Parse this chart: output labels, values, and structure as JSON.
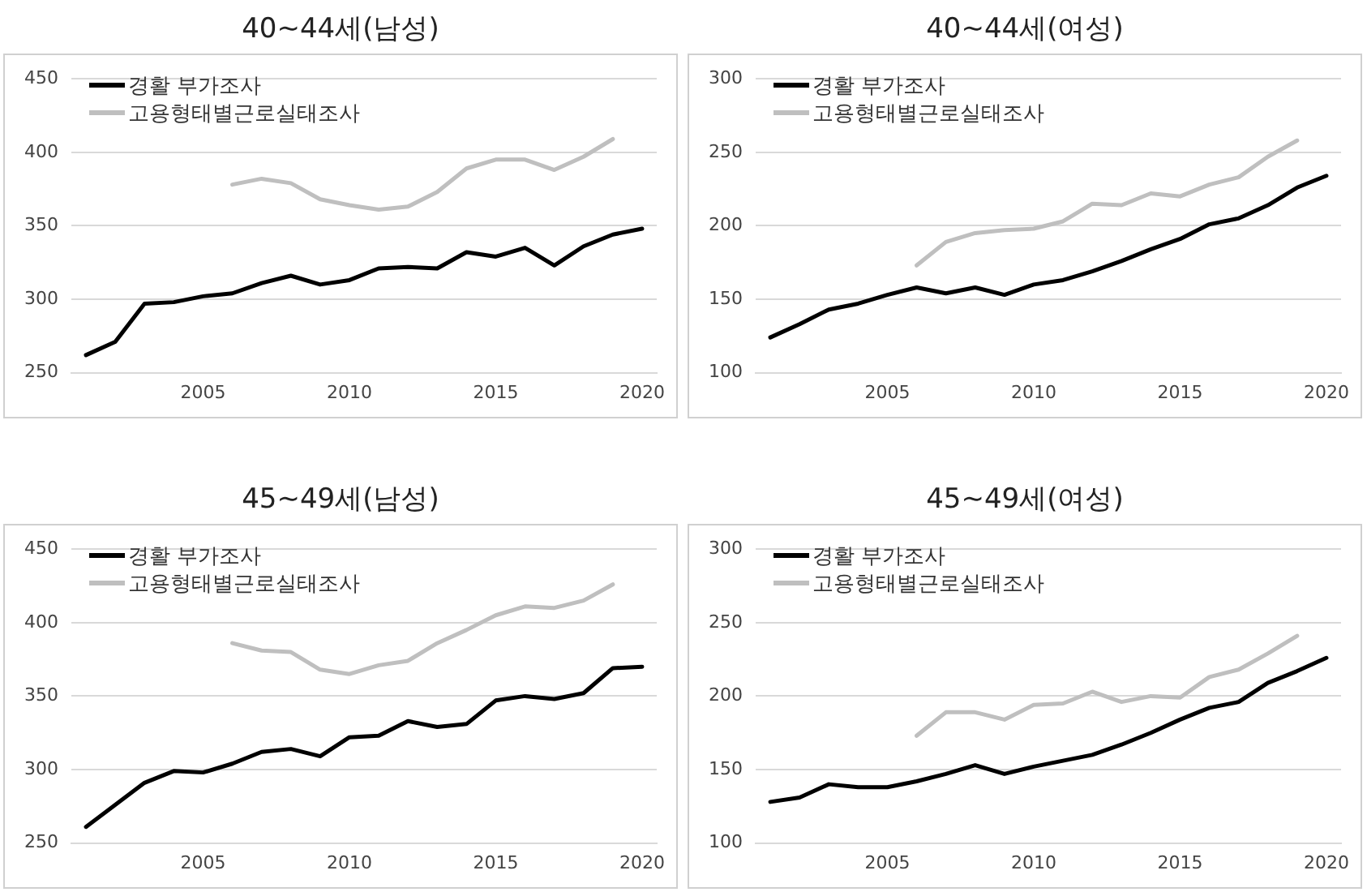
{
  "chart_data": [
    {
      "type": "line",
      "title": "40~44세(남성)",
      "x": [
        2001,
        2002,
        2003,
        2004,
        2005,
        2006,
        2007,
        2008,
        2009,
        2010,
        2011,
        2012,
        2013,
        2014,
        2015,
        2016,
        2017,
        2018,
        2019,
        2020
      ],
      "xlim": [
        2000.5,
        2020.5
      ],
      "xticks": [
        2005,
        2010,
        2015,
        2020
      ],
      "ylim": [
        250,
        450
      ],
      "yticks": [
        250,
        300,
        350,
        400,
        450
      ],
      "grid": "y",
      "legend": "top left",
      "marker": "none",
      "line_style": "solid",
      "series": [
        {
          "name": "경활 부가조사",
          "color": "#000000",
          "values": [
            262,
            271,
            297,
            298,
            302,
            304,
            311,
            316,
            310,
            313,
            321,
            322,
            321,
            332,
            329,
            335,
            323,
            336,
            344,
            348
          ]
        },
        {
          "name": "고용형태별근로실태조사",
          "color": "#bfbfbf",
          "values": [
            null,
            null,
            null,
            null,
            null,
            378,
            382,
            379,
            368,
            364,
            361,
            363,
            373,
            389,
            395,
            395,
            388,
            397,
            409,
            null
          ]
        }
      ]
    },
    {
      "type": "line",
      "title": "40~44세(여성)",
      "x": [
        2001,
        2002,
        2003,
        2004,
        2005,
        2006,
        2007,
        2008,
        2009,
        2010,
        2011,
        2012,
        2013,
        2014,
        2015,
        2016,
        2017,
        2018,
        2019,
        2020
      ],
      "xlim": [
        2000.5,
        2020.5
      ],
      "xticks": [
        2005,
        2010,
        2015,
        2020
      ],
      "ylim": [
        100,
        300
      ],
      "yticks": [
        100,
        150,
        200,
        250,
        300
      ],
      "grid": "y",
      "legend": "top left",
      "marker": "none",
      "line_style": "solid",
      "series": [
        {
          "name": "경활 부가조사",
          "color": "#000000",
          "values": [
            124,
            133,
            143,
            147,
            153,
            158,
            154,
            158,
            153,
            160,
            163,
            169,
            176,
            184,
            191,
            201,
            205,
            214,
            226,
            234
          ]
        },
        {
          "name": "고용형태별근로실태조사",
          "color": "#bfbfbf",
          "values": [
            null,
            null,
            null,
            null,
            null,
            173,
            189,
            195,
            197,
            198,
            203,
            215,
            214,
            222,
            220,
            228,
            233,
            247,
            258,
            null
          ]
        }
      ]
    },
    {
      "type": "line",
      "title": "45~49세(남성)",
      "x": [
        2001,
        2002,
        2003,
        2004,
        2005,
        2006,
        2007,
        2008,
        2009,
        2010,
        2011,
        2012,
        2013,
        2014,
        2015,
        2016,
        2017,
        2018,
        2019,
        2020
      ],
      "xlim": [
        2000.5,
        2020.5
      ],
      "xticks": [
        2005,
        2010,
        2015,
        2020
      ],
      "ylim": [
        250,
        450
      ],
      "yticks": [
        250,
        300,
        350,
        400,
        450
      ],
      "grid": "y",
      "legend": "top left",
      "marker": "none",
      "line_style": "solid",
      "series": [
        {
          "name": "경활 부가조사",
          "color": "#000000",
          "values": [
            261,
            276,
            291,
            299,
            298,
            304,
            312,
            314,
            309,
            322,
            323,
            333,
            329,
            331,
            347,
            350,
            348,
            352,
            369,
            370
          ]
        },
        {
          "name": "고용형태별근로실태조사",
          "color": "#bfbfbf",
          "values": [
            null,
            null,
            null,
            null,
            null,
            386,
            381,
            380,
            368,
            365,
            371,
            374,
            386,
            395,
            405,
            411,
            410,
            415,
            426,
            null
          ]
        }
      ]
    },
    {
      "type": "line",
      "title": "45~49세(여성)",
      "x": [
        2001,
        2002,
        2003,
        2004,
        2005,
        2006,
        2007,
        2008,
        2009,
        2010,
        2011,
        2012,
        2013,
        2014,
        2015,
        2016,
        2017,
        2018,
        2019,
        2020
      ],
      "xlim": [
        2000.5,
        2020.5
      ],
      "xticks": [
        2005,
        2010,
        2015,
        2020
      ],
      "ylim": [
        100,
        300
      ],
      "yticks": [
        100,
        150,
        200,
        250,
        300
      ],
      "grid": "y",
      "legend": "top left",
      "marker": "none",
      "line_style": "solid",
      "series": [
        {
          "name": "경활 부가조사",
          "color": "#000000",
          "values": [
            128,
            131,
            140,
            138,
            138,
            142,
            147,
            153,
            147,
            152,
            156,
            160,
            167,
            175,
            184,
            192,
            196,
            209,
            217,
            226
          ]
        },
        {
          "name": "고용형태별근로실태조사",
          "color": "#bfbfbf",
          "values": [
            null,
            null,
            null,
            null,
            null,
            173,
            189,
            189,
            184,
            194,
            195,
            203,
            196,
            200,
            199,
            213,
            218,
            229,
            241,
            null
          ]
        }
      ]
    }
  ]
}
